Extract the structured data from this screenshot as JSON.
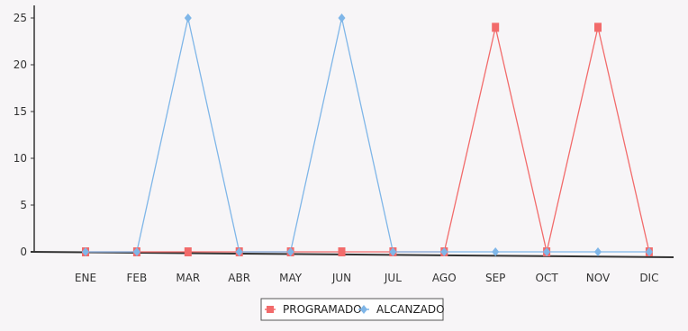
{
  "chart_data": {
    "type": "line",
    "categories": [
      "ENE",
      "FEB",
      "MAR",
      "ABR",
      "MAY",
      "JUN",
      "JUL",
      "AGO",
      "SEP",
      "OCT",
      "NOV",
      "DIC"
    ],
    "series": [
      {
        "name": "PROGRAMADO",
        "color": "#f26b6b",
        "marker": "square",
        "values": [
          0,
          0,
          0,
          0,
          0,
          0,
          0,
          0,
          24,
          0,
          24,
          0
        ]
      },
      {
        "name": "ALCANZADO",
        "color": "#7fb6e8",
        "marker": "diamond",
        "values": [
          0,
          0,
          25,
          0,
          0,
          25,
          0,
          0,
          0,
          0,
          0,
          0
        ]
      }
    ],
    "y_ticks": [
      "0",
      "5",
      "10",
      "15",
      "20",
      "25"
    ],
    "ylim": [
      0,
      25
    ],
    "legend_position": "bottom",
    "grid": false
  }
}
